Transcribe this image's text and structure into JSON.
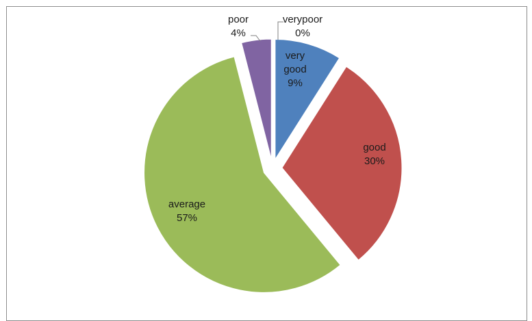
{
  "chart_data": {
    "type": "pie",
    "title": "",
    "slices": [
      {
        "label": "very good",
        "value": 9,
        "percent_label": "9%",
        "color": "#4F81BD",
        "exploded": true
      },
      {
        "label": "good",
        "value": 30,
        "percent_label": "30%",
        "color": "#C0504D",
        "exploded": true
      },
      {
        "label": "average",
        "value": 57,
        "percent_label": "57%",
        "color": "#9BBB59",
        "exploded": true
      },
      {
        "label": "poor",
        "value": 4,
        "percent_label": "4%",
        "color": "#8064A2",
        "exploded": true
      },
      {
        "label": "verypoor",
        "value": 0,
        "percent_label": "0%",
        "color": "#4BACC6",
        "exploded": true
      }
    ],
    "legend": "none",
    "start_angle": "12 o'clock, clockwise"
  }
}
